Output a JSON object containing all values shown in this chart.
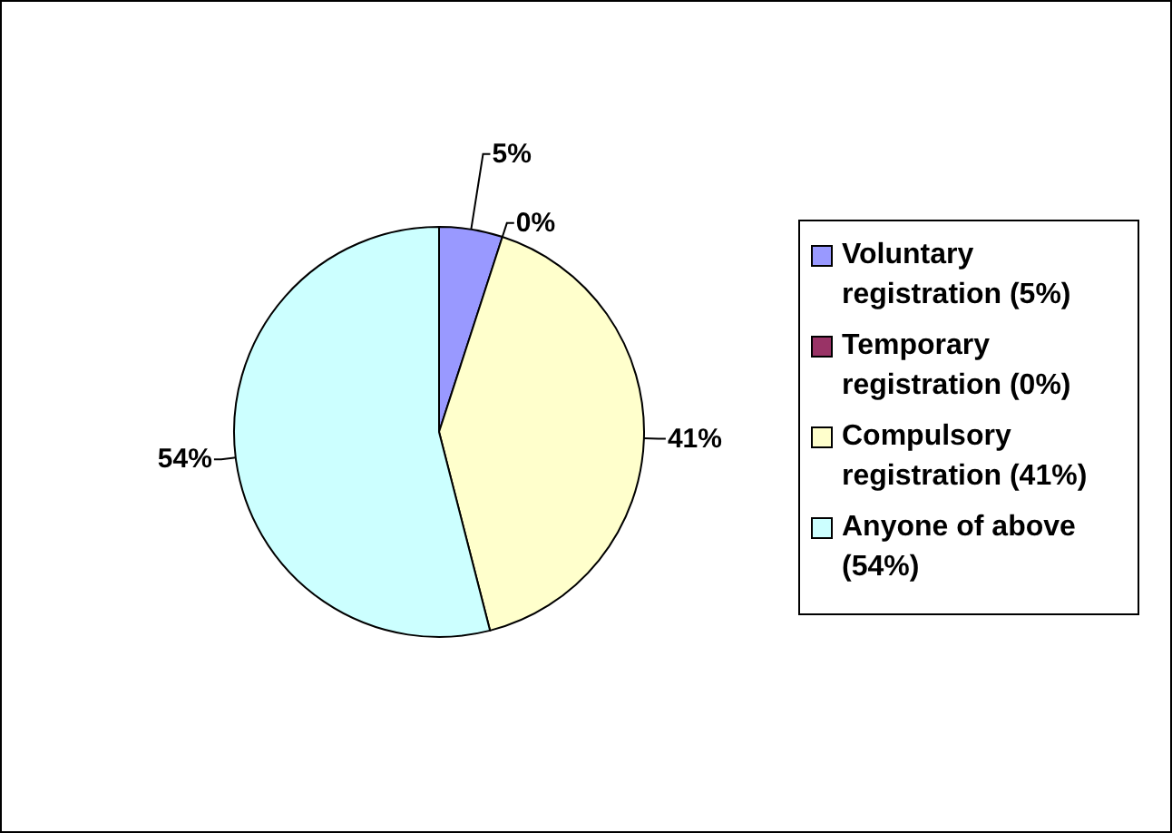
{
  "chart_data": {
    "type": "pie",
    "categories": [
      "Voluntary registration (5%)",
      "Temporary registration (0%)",
      "Compulsory registration (41%)",
      "Anyone of above (54%)"
    ],
    "values": [
      5,
      0,
      41,
      54
    ],
    "colors": [
      "#9999ff",
      "#993366",
      "#ffffcc",
      "#ccffff"
    ],
    "value_labels": [
      "5%",
      "0%",
      "41%",
      "54%"
    ],
    "legend": "right"
  }
}
